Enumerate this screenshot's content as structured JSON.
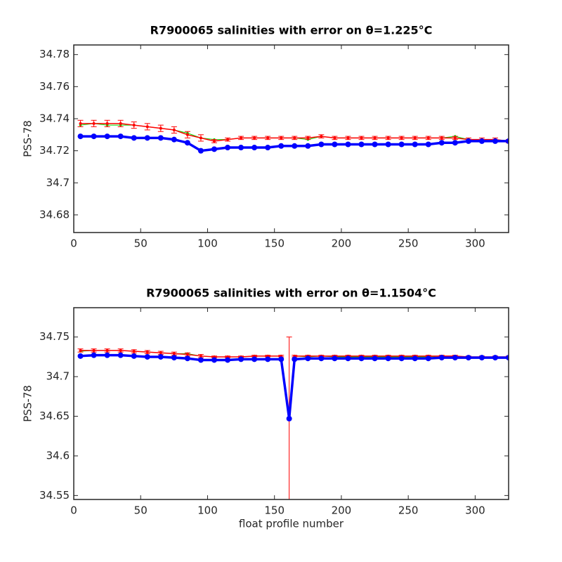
{
  "chart_data": [
    {
      "type": "line",
      "title": "R7900065 salinities with error on θ=1.225°C",
      "ylabel": "PSS-78",
      "xlim": [
        0,
        325
      ],
      "xticks": [
        0,
        50,
        100,
        150,
        200,
        250,
        300
      ],
      "ylim": [
        34.669,
        34.786
      ],
      "yticks": [
        34.68,
        34.7,
        34.72,
        34.74,
        34.76,
        34.78
      ],
      "x": [
        5,
        15,
        25,
        35,
        45,
        55,
        65,
        75,
        85,
        95,
        105,
        115,
        125,
        135,
        145,
        155,
        165,
        175,
        185,
        195,
        205,
        215,
        225,
        235,
        245,
        255,
        265,
        275,
        285,
        295,
        305,
        315,
        325
      ],
      "series": [
        {
          "color": "#00dd00",
          "values": [
            34.736,
            34.737,
            34.736,
            34.736,
            34.736,
            34.735,
            34.734,
            34.733,
            34.731,
            34.728,
            34.727,
            34.727,
            34.728,
            34.728,
            34.728,
            34.728,
            34.728,
            34.727,
            34.729,
            34.728,
            34.728,
            34.728,
            34.728,
            34.728,
            34.728,
            34.728,
            34.728,
            34.728,
            34.729,
            34.727,
            34.727,
            34.727,
            34.726
          ]
        },
        {
          "color": "#ff0000",
          "values": [
            34.737,
            34.737,
            34.737,
            34.737,
            34.736,
            34.735,
            34.734,
            34.733,
            34.73,
            34.728,
            34.726,
            34.727,
            34.728,
            34.728,
            34.728,
            34.728,
            34.728,
            34.728,
            34.729,
            34.728,
            34.728,
            34.728,
            34.728,
            34.728,
            34.728,
            34.728,
            34.728,
            34.728,
            34.728,
            34.727,
            34.727,
            34.727,
            34.726
          ],
          "errors": [
            0.002,
            0.002,
            0.002,
            0.002,
            0.002,
            0.002,
            0.002,
            0.002,
            0.002,
            0.002,
            0.001,
            0.001,
            0.001,
            0.001,
            0.001,
            0.001,
            0.001,
            0.001,
            0.001,
            0.001,
            0.001,
            0.001,
            0.001,
            0.001,
            0.001,
            0.001,
            0.001,
            0.001,
            0.001,
            0.001,
            0.001,
            0.001,
            0.001
          ]
        },
        {
          "color": "#0000ff",
          "values": [
            34.729,
            34.729,
            34.729,
            34.729,
            34.728,
            34.728,
            34.728,
            34.727,
            34.725,
            34.72,
            34.721,
            34.722,
            34.722,
            34.722,
            34.722,
            34.723,
            34.723,
            34.723,
            34.724,
            34.724,
            34.724,
            34.724,
            34.724,
            34.724,
            34.724,
            34.724,
            34.724,
            34.725,
            34.725,
            34.726,
            34.726,
            34.726,
            34.726
          ]
        }
      ]
    },
    {
      "type": "line",
      "title": "R7900065 salinities with error on θ=1.1504°C",
      "ylabel": "PSS-78",
      "xlabel": "float profile number",
      "xlim": [
        0,
        325
      ],
      "xticks": [
        0,
        50,
        100,
        150,
        200,
        250,
        300
      ],
      "ylim": [
        34.545,
        34.787
      ],
      "yticks": [
        34.55,
        34.6,
        34.65,
        34.7,
        34.75
      ],
      "x": [
        5,
        15,
        25,
        35,
        45,
        55,
        65,
        75,
        85,
        95,
        105,
        115,
        125,
        135,
        145,
        155,
        161,
        165,
        175,
        185,
        195,
        205,
        215,
        225,
        235,
        245,
        255,
        265,
        275,
        285,
        295,
        305,
        315,
        325
      ],
      "series": [
        {
          "color": "#00dd00",
          "values": [
            34.732,
            34.733,
            34.733,
            34.733,
            34.732,
            34.731,
            34.73,
            34.729,
            34.729,
            34.726,
            34.725,
            34.725,
            34.725,
            34.726,
            34.726,
            34.726,
            34.647,
            34.726,
            34.725,
            34.726,
            34.725,
            34.725,
            34.725,
            34.725,
            34.725,
            34.725,
            34.725,
            34.725,
            34.726,
            34.726,
            34.725,
            34.725,
            34.725,
            34.725
          ]
        },
        {
          "color": "#ff0000",
          "values": [
            34.733,
            34.733,
            34.733,
            34.733,
            34.732,
            34.731,
            34.73,
            34.729,
            34.728,
            34.726,
            34.725,
            34.725,
            34.725,
            34.726,
            34.726,
            34.726,
            34.647,
            34.726,
            34.726,
            34.726,
            34.726,
            34.726,
            34.726,
            34.726,
            34.726,
            34.726,
            34.726,
            34.726,
            34.726,
            34.726,
            34.725,
            34.725,
            34.725,
            34.725
          ],
          "errors": [
            0.002,
            0.002,
            0.002,
            0.002,
            0.002,
            0.002,
            0.002,
            0.002,
            0.002,
            0.002,
            0.001,
            0.001,
            0.001,
            0.001,
            0.001,
            0.001,
            0.103,
            0.001,
            0.001,
            0.001,
            0.001,
            0.001,
            0.001,
            0.001,
            0.001,
            0.001,
            0.001,
            0.001,
            0.001,
            0.001,
            0.001,
            0.001,
            0.001,
            0.001
          ]
        },
        {
          "color": "#0000ff",
          "values": [
            34.726,
            34.727,
            34.727,
            34.727,
            34.726,
            34.725,
            34.725,
            34.724,
            34.723,
            34.721,
            34.721,
            34.721,
            34.722,
            34.722,
            34.722,
            34.722,
            34.647,
            34.722,
            34.723,
            34.723,
            34.723,
            34.723,
            34.723,
            34.723,
            34.723,
            34.723,
            34.723,
            34.723,
            34.724,
            34.724,
            34.724,
            34.724,
            34.724,
            34.724
          ]
        }
      ]
    }
  ]
}
